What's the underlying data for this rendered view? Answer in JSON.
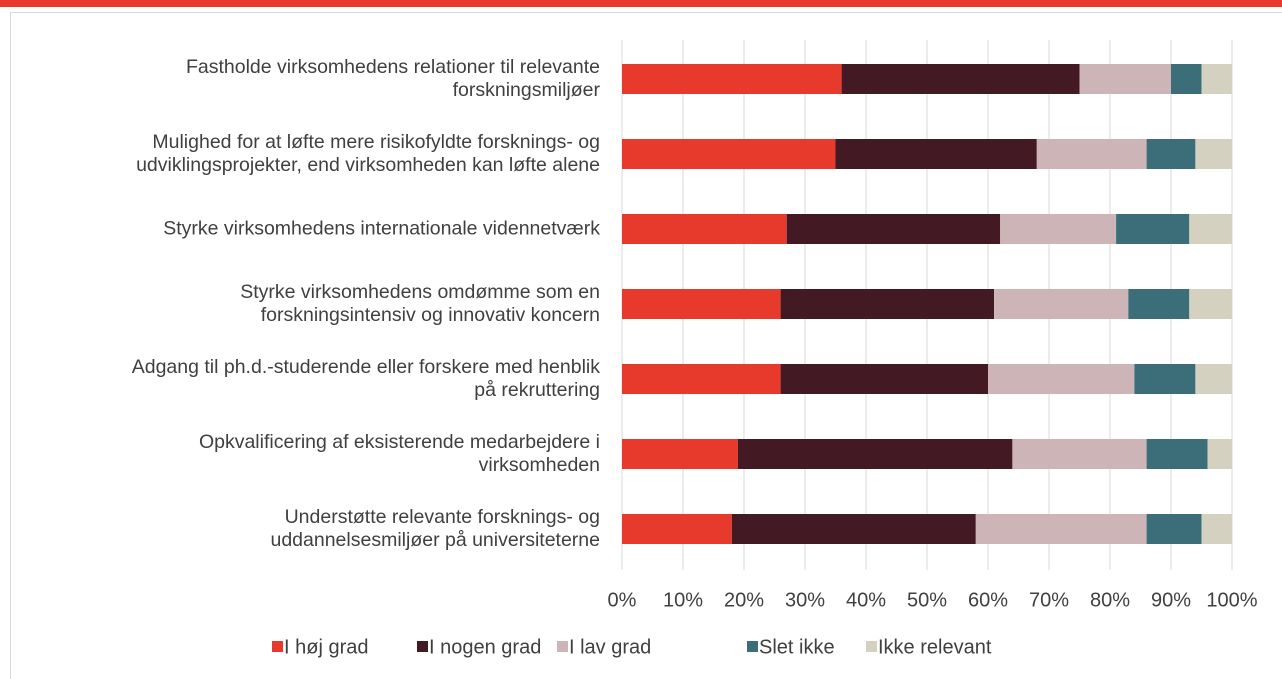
{
  "chart_data": {
    "type": "stacked_barh",
    "categories": [
      "Fastholde virksomhedens relationer til relevante\nforskningsmiljøer",
      "Mulighed for at løfte mere risikofyldte forsknings- og\nudviklingsprojekter, end virksomheden kan løfte alene",
      "Styrke virksomhedens internationale vidennetværk",
      "Styrke virksomhedens omdømme som en\nforskningsintensiv og innovativ koncern",
      "Adgang til ph.d.-studerende eller forskere med henblik\npå rekruttering",
      "Opkvalificering af eksisterende medarbejdere i\nvirksomheden",
      "Understøtte relevante forsknings- og\nuddannelsesmiljøer på universiteterne"
    ],
    "series": [
      {
        "name": "I høj grad",
        "color": "#e8392d",
        "values": [
          36,
          35,
          27,
          26,
          26,
          19,
          18
        ]
      },
      {
        "name": "I nogen grad",
        "color": "#431a23",
        "values": [
          39,
          33,
          35,
          35,
          34,
          45,
          40
        ]
      },
      {
        "name": "I lav grad",
        "color": "#cdb5b7",
        "values": [
          15,
          18,
          19,
          22,
          24,
          22,
          28
        ]
      },
      {
        "name": "Slet ikke",
        "color": "#3c6e7a",
        "values": [
          5,
          8,
          12,
          10,
          10,
          10,
          9
        ]
      },
      {
        "name": "Ikke relevant",
        "color": "#d4d1c1",
        "values": [
          5,
          6,
          7,
          7,
          6,
          4,
          5
        ]
      }
    ],
    "xlim": [
      0,
      100
    ],
    "xticks": [
      {
        "value": 0,
        "label": "0%"
      },
      {
        "value": 10,
        "label": "10%"
      },
      {
        "value": 20,
        "label": "20%"
      },
      {
        "value": 30,
        "label": "30%"
      },
      {
        "value": 40,
        "label": "40%"
      },
      {
        "value": 50,
        "label": "50%"
      },
      {
        "value": 60,
        "label": "60%"
      },
      {
        "value": 70,
        "label": "70%"
      },
      {
        "value": 80,
        "label": "80%"
      },
      {
        "value": 90,
        "label": "90%"
      },
      {
        "value": 100,
        "label": "100%"
      }
    ],
    "grid": true,
    "legend": "bottom"
  }
}
